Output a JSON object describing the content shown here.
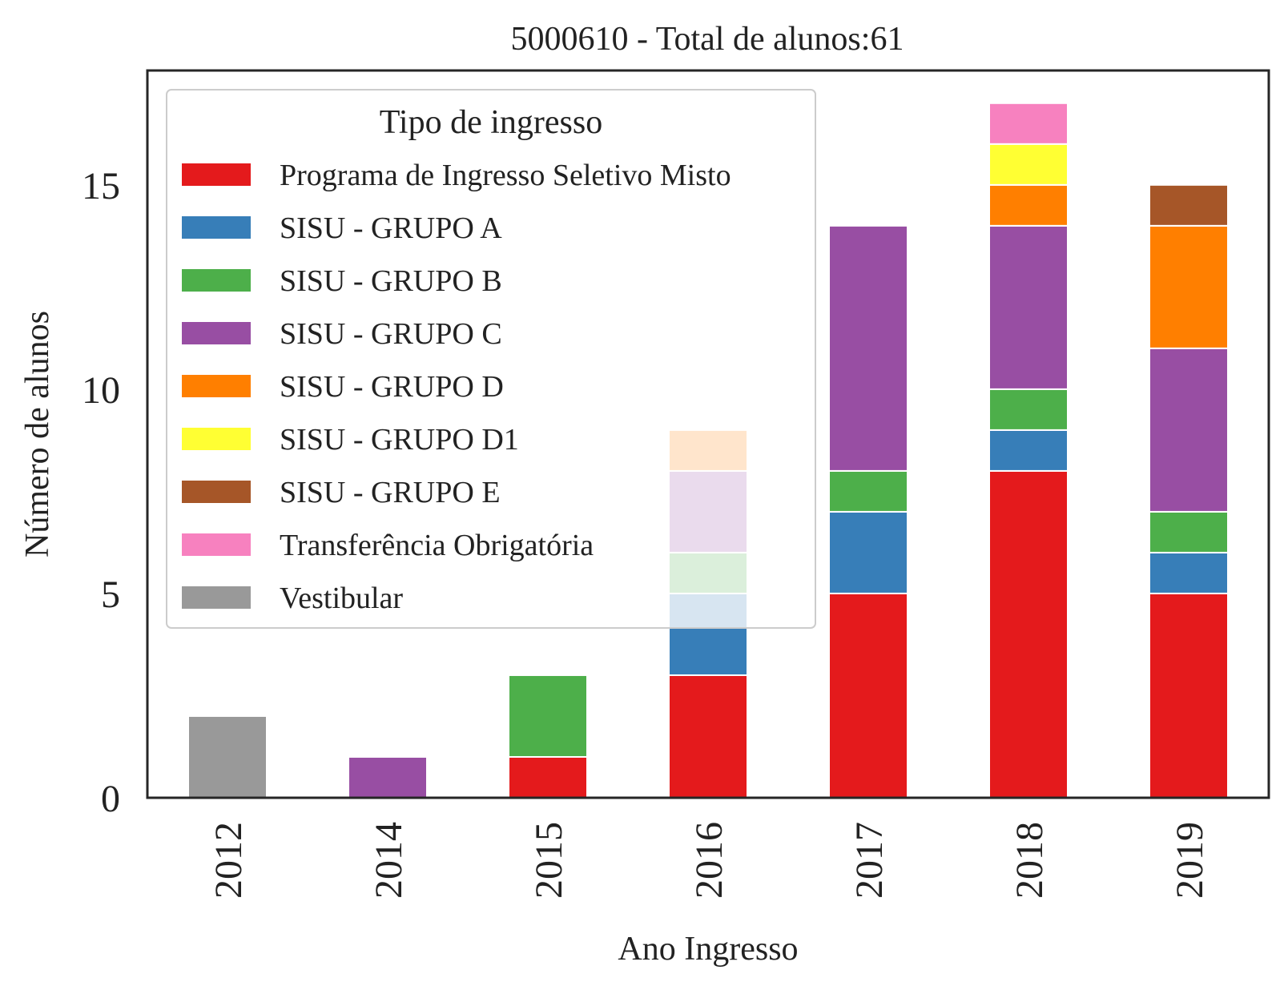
{
  "chart_data": {
    "type": "bar",
    "stacked": true,
    "title": "5000610 - Total de alunos:61",
    "xlabel": "Ano Ingresso",
    "ylabel": "Número de alunos",
    "categories": [
      "2012",
      "2014",
      "2015",
      "2016",
      "2017",
      "2018",
      "2019"
    ],
    "yticks": [
      "0",
      "5",
      "10",
      "15"
    ],
    "ylim": [
      0,
      17.8
    ],
    "grid": false,
    "legend": {
      "title": "Tipo de ingresso",
      "position": "top-left"
    },
    "series": [
      {
        "name": "Programa de Ingresso Seletivo Misto",
        "color": "#e41a1c",
        "values": [
          0,
          0,
          1,
          3,
          5,
          8,
          5
        ]
      },
      {
        "name": "SISU - GRUPO A",
        "color": "#377eb8",
        "values": [
          0,
          0,
          0,
          2,
          2,
          1,
          1
        ]
      },
      {
        "name": "SISU - GRUPO B",
        "color": "#4daf4a",
        "values": [
          0,
          0,
          2,
          1,
          1,
          1,
          1
        ]
      },
      {
        "name": "SISU - GRUPO C",
        "color": "#984ea3",
        "values": [
          0,
          1,
          0,
          2,
          6,
          4,
          4
        ]
      },
      {
        "name": "SISU - GRUPO D",
        "color": "#ff7f00",
        "values": [
          0,
          0,
          0,
          1,
          0,
          1,
          3
        ]
      },
      {
        "name": "SISU - GRUPO D1",
        "color": "#ffff33",
        "values": [
          0,
          0,
          0,
          0,
          0,
          1,
          0
        ]
      },
      {
        "name": "SISU - GRUPO E",
        "color": "#a65628",
        "values": [
          0,
          0,
          0,
          0,
          0,
          0,
          1
        ]
      },
      {
        "name": "Transferência Obrigatória",
        "color": "#f781bf",
        "values": [
          0,
          0,
          0,
          0,
          0,
          1,
          0
        ]
      },
      {
        "name": "Vestibular",
        "color": "#999999",
        "values": [
          2,
          0,
          0,
          0,
          0,
          0,
          0
        ]
      }
    ]
  }
}
